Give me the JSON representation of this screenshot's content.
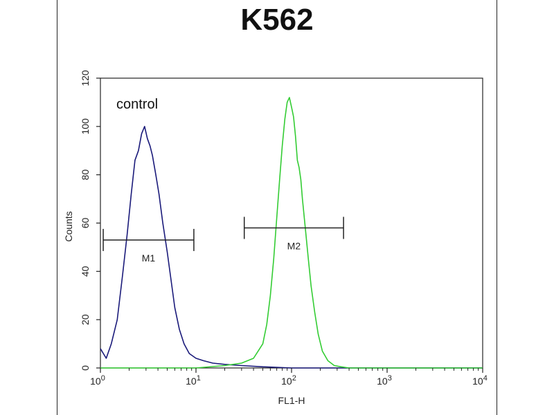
{
  "chart_data": {
    "type": "line",
    "title": "K562",
    "xlabel": "FL1-H",
    "ylabel": "Counts",
    "xscale": "log",
    "xlim": [
      1,
      10000
    ],
    "ylim": [
      0,
      120
    ],
    "x_ticks": [
      {
        "value": 1,
        "base": "10",
        "exp": "0"
      },
      {
        "value": 10,
        "base": "10",
        "exp": "1"
      },
      {
        "value": 100,
        "base": "10",
        "exp": "2"
      },
      {
        "value": 1000,
        "base": "10",
        "exp": "3"
      },
      {
        "value": 10000,
        "base": "10",
        "exp": "4"
      }
    ],
    "y_ticks": [
      "0",
      "20",
      "40",
      "60",
      "80",
      "100",
      "120"
    ],
    "grid": false,
    "annotation": "control",
    "series": [
      {
        "color": "#1a1a7a",
        "x": [
          1.0,
          1.15,
          1.3,
          1.5,
          1.7,
          1.9,
          2.1,
          2.3,
          2.5,
          2.7,
          2.9,
          3.1,
          3.3,
          3.5,
          3.8,
          4.1,
          4.5,
          5.0,
          5.5,
          6.0,
          6.7,
          7.5,
          8.5,
          10,
          12,
          15,
          20,
          30,
          50,
          100,
          300,
          1000,
          10000
        ],
        "y": [
          8,
          4,
          10,
          20,
          38,
          55,
          72,
          86,
          90,
          97,
          100,
          95,
          92,
          88,
          80,
          72,
          60,
          48,
          36,
          25,
          16,
          10,
          6,
          4,
          3,
          2,
          1.5,
          1,
          0.5,
          0,
          0,
          0,
          0
        ]
      },
      {
        "color": "#33cc33",
        "x": [
          1,
          10,
          20,
          30,
          40,
          50,
          55,
          60,
          65,
          70,
          75,
          80,
          85,
          90,
          95,
          100,
          105,
          110,
          115,
          120,
          125,
          130,
          140,
          150,
          160,
          175,
          190,
          210,
          240,
          280,
          330,
          400,
          600,
          1000,
          10000
        ],
        "y": [
          0,
          0,
          1,
          2,
          4,
          10,
          18,
          30,
          45,
          62,
          78,
          92,
          103,
          110,
          112,
          108,
          104,
          96,
          86,
          83,
          78,
          70,
          57,
          45,
          34,
          23,
          14,
          7,
          3,
          1,
          0.5,
          0,
          0,
          0,
          0
        ]
      }
    ],
    "markers": [
      {
        "label": "M1",
        "x_start": 1.07,
        "x_end": 9.5,
        "y": 53
      },
      {
        "label": "M2",
        "x_start": 32,
        "x_end": 350,
        "y": 58
      }
    ]
  }
}
